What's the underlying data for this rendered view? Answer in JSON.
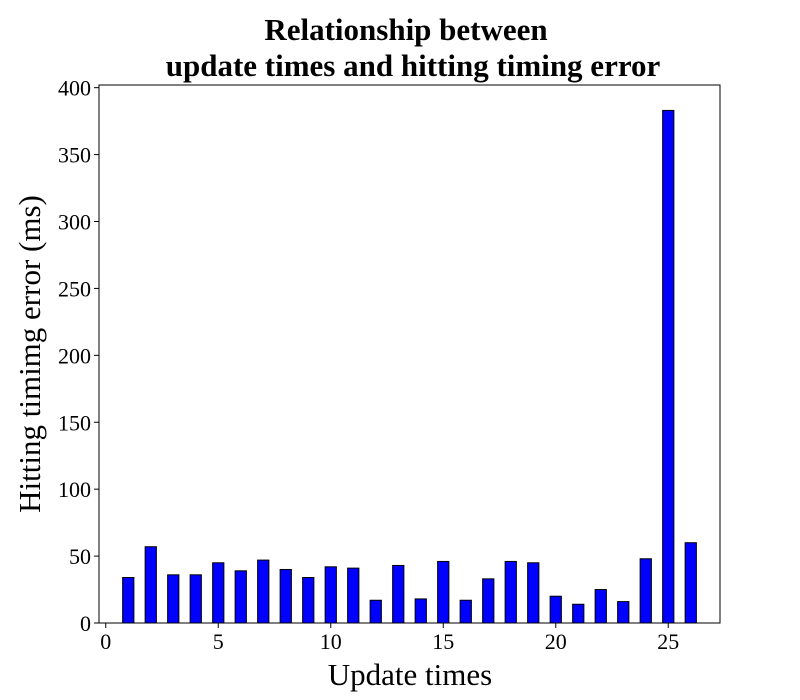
{
  "chart_data": {
    "type": "bar",
    "title_line1": "Relationship between",
    "title_line2": "update times and hitting timing error",
    "xlabel": "Update times",
    "ylabel": "Hitting timimg error (ms)",
    "x": [
      1,
      2,
      3,
      4,
      5,
      6,
      7,
      8,
      9,
      10,
      11,
      12,
      13,
      14,
      15,
      16,
      17,
      18,
      19,
      20,
      21,
      22,
      23,
      24,
      25,
      26
    ],
    "values": [
      34,
      57,
      36,
      36,
      45,
      39,
      47,
      40,
      34,
      42,
      41,
      17,
      43,
      18,
      46,
      17,
      33,
      46,
      45,
      20,
      14,
      25,
      16,
      48,
      383,
      60
    ],
    "xlim": [
      -0.3,
      27.3
    ],
    "ylim": [
      0,
      402
    ],
    "xticks": [
      0,
      5,
      10,
      15,
      20,
      25
    ],
    "yticks": [
      0,
      50,
      100,
      150,
      200,
      250,
      300,
      350,
      400
    ],
    "bar_color": "#0000ff",
    "edge_color": "#000000",
    "grid": false,
    "legend": false
  }
}
